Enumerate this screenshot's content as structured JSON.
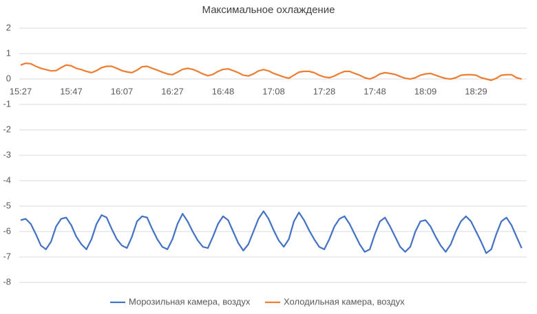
{
  "chart_data": {
    "type": "line",
    "title": "Максимальное охлаждение",
    "categories": [
      "15:27",
      null,
      null,
      null,
      null,
      null,
      null,
      null,
      null,
      null,
      "15:47",
      null,
      null,
      null,
      null,
      null,
      null,
      null,
      null,
      null,
      "16:07",
      null,
      null,
      null,
      null,
      null,
      null,
      null,
      null,
      null,
      "16:27",
      null,
      null,
      null,
      null,
      null,
      null,
      null,
      null,
      null,
      "16:48",
      null,
      null,
      null,
      null,
      null,
      null,
      null,
      null,
      null,
      "17:08",
      null,
      null,
      null,
      null,
      null,
      null,
      null,
      null,
      null,
      "17:28",
      null,
      null,
      null,
      null,
      null,
      null,
      null,
      null,
      null,
      "17:48",
      null,
      null,
      null,
      null,
      null,
      null,
      null,
      null,
      null,
      "18:09",
      null,
      null,
      null,
      null,
      null,
      null,
      null,
      null,
      null,
      "18:29",
      null,
      null,
      null,
      null,
      null,
      null,
      null,
      null,
      null
    ],
    "series": [
      {
        "name": "Морозильная камера, воздух",
        "color": "#4472c4",
        "values": [
          -5.55,
          -5.5,
          -5.7,
          -6.1,
          -6.55,
          -6.7,
          -6.4,
          -5.8,
          -5.5,
          -5.45,
          -5.75,
          -6.2,
          -6.5,
          -6.7,
          -6.3,
          -5.7,
          -5.35,
          -5.45,
          -5.9,
          -6.3,
          -6.55,
          -6.65,
          -6.2,
          -5.6,
          -5.4,
          -5.45,
          -5.9,
          -6.3,
          -6.6,
          -6.7,
          -6.3,
          -5.7,
          -5.3,
          -5.6,
          -6.0,
          -6.35,
          -6.6,
          -6.65,
          -6.2,
          -5.7,
          -5.4,
          -5.55,
          -6.0,
          -6.45,
          -6.75,
          -6.5,
          -6.0,
          -5.5,
          -5.2,
          -5.5,
          -5.95,
          -6.35,
          -6.6,
          -6.3,
          -5.6,
          -5.25,
          -5.55,
          -5.95,
          -6.3,
          -6.6,
          -6.7,
          -6.3,
          -5.8,
          -5.5,
          -5.4,
          -5.7,
          -6.1,
          -6.5,
          -6.8,
          -6.7,
          -6.1,
          -5.6,
          -5.45,
          -5.8,
          -6.2,
          -6.6,
          -6.8,
          -6.6,
          -6.0,
          -5.6,
          -5.55,
          -5.8,
          -6.2,
          -6.55,
          -6.8,
          -6.5,
          -6.0,
          -5.6,
          -5.4,
          -5.6,
          -6.0,
          -6.4,
          -6.85,
          -6.7,
          -6.1,
          -5.6,
          -5.45,
          -5.75,
          -6.2,
          -6.65
        ]
      },
      {
        "name": "Холодильная камера, воздух",
        "color": "#ed7d31",
        "values": [
          0.55,
          0.62,
          0.6,
          0.5,
          0.42,
          0.37,
          0.32,
          0.33,
          0.45,
          0.55,
          0.52,
          0.42,
          0.37,
          0.3,
          0.25,
          0.33,
          0.45,
          0.5,
          0.5,
          0.42,
          0.33,
          0.28,
          0.25,
          0.35,
          0.48,
          0.5,
          0.42,
          0.35,
          0.27,
          0.2,
          0.17,
          0.27,
          0.38,
          0.42,
          0.38,
          0.3,
          0.2,
          0.13,
          0.18,
          0.3,
          0.38,
          0.4,
          0.33,
          0.25,
          0.15,
          0.12,
          0.2,
          0.32,
          0.37,
          0.32,
          0.22,
          0.15,
          0.08,
          0.03,
          0.15,
          0.27,
          0.3,
          0.3,
          0.25,
          0.15,
          0.08,
          0.05,
          0.12,
          0.22,
          0.3,
          0.3,
          0.22,
          0.15,
          0.05,
          0,
          0.08,
          0.2,
          0.25,
          0.22,
          0.18,
          0.1,
          0.03,
          0,
          0.05,
          0.15,
          0.2,
          0.22,
          0.15,
          0.08,
          0.02,
          0,
          0.05,
          0.15,
          0.17,
          0.17,
          0.15,
          0.05,
          0,
          -0.05,
          0.03,
          0.15,
          0.17,
          0.17,
          0.05,
          0
        ]
      }
    ],
    "ylim": [
      -8,
      2
    ],
    "yticks": [
      -8,
      -7,
      -6,
      -5,
      -4,
      -3,
      -2,
      -1,
      0,
      1,
      2
    ],
    "grid": true,
    "legend": "bottom"
  }
}
